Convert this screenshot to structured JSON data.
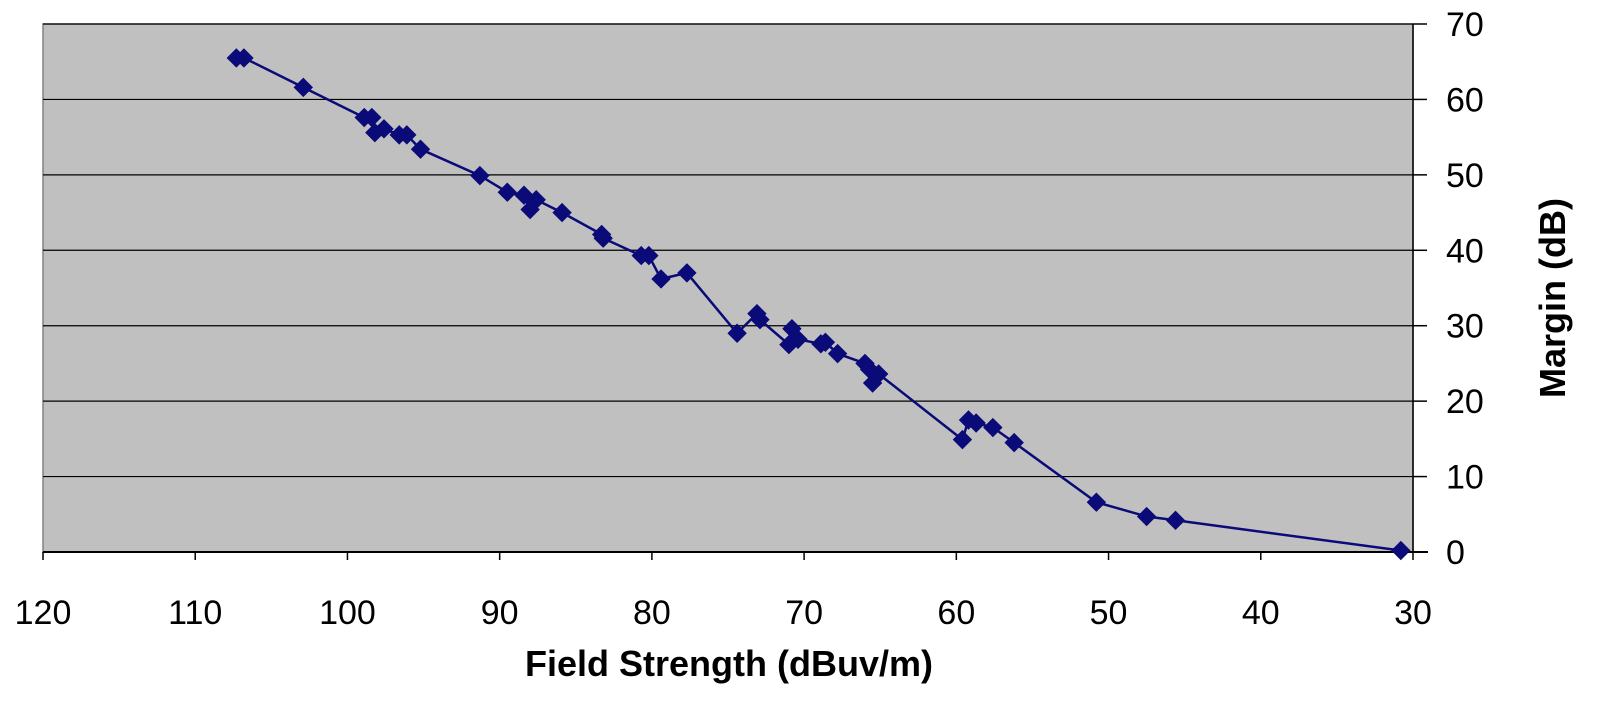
{
  "chart_data": {
    "type": "line",
    "title": "",
    "xlabel": "Field Strength (dBuv/m)",
    "ylabel": "Margin (dB)",
    "xlim": [
      120,
      30
    ],
    "ylim": [
      0,
      70
    ],
    "x_reversed": true,
    "y_axis_side": "right",
    "grid": "horizontal",
    "legend": "none",
    "x_ticks": [
      120,
      110,
      100,
      90,
      80,
      70,
      60,
      50,
      40,
      30
    ],
    "y_ticks": [
      0,
      10,
      20,
      30,
      40,
      50,
      60,
      70
    ],
    "colors": {
      "series": "#0a0a78",
      "plot_bg": "#c0c0c0",
      "grid": "#000000"
    },
    "series": [
      {
        "marker": "diamond",
        "points": [
          [
            107.3,
            65.5
          ],
          [
            106.8,
            65.5
          ],
          [
            102.9,
            61.6
          ],
          [
            98.9,
            57.6
          ],
          [
            98.4,
            57.6
          ],
          [
            98.2,
            55.6
          ],
          [
            97.6,
            56.1
          ],
          [
            96.6,
            55.3
          ],
          [
            96.1,
            55.3
          ],
          [
            95.2,
            53.4
          ],
          [
            91.3,
            49.9
          ],
          [
            89.5,
            47.7
          ],
          [
            88.4,
            47.3
          ],
          [
            88.0,
            45.4
          ],
          [
            87.6,
            46.7
          ],
          [
            85.9,
            45.0
          ],
          [
            83.3,
            42.1
          ],
          [
            83.2,
            41.6
          ],
          [
            80.7,
            39.3
          ],
          [
            80.2,
            39.3
          ],
          [
            79.4,
            36.2
          ],
          [
            77.7,
            37.0
          ],
          [
            74.4,
            29.0
          ],
          [
            73.1,
            31.6
          ],
          [
            72.9,
            30.8
          ],
          [
            71.0,
            27.5
          ],
          [
            70.8,
            29.6
          ],
          [
            70.4,
            28.2
          ],
          [
            68.9,
            27.6
          ],
          [
            68.6,
            27.8
          ],
          [
            67.8,
            26.3
          ],
          [
            66.0,
            25.0
          ],
          [
            65.7,
            24.2
          ],
          [
            65.5,
            22.4
          ],
          [
            65.1,
            23.6
          ],
          [
            59.6,
            14.9
          ],
          [
            59.2,
            17.5
          ],
          [
            58.7,
            17.1
          ],
          [
            57.6,
            16.5
          ],
          [
            56.2,
            14.5
          ],
          [
            50.8,
            6.6
          ],
          [
            47.5,
            4.7
          ],
          [
            45.6,
            4.2
          ],
          [
            30.8,
            0.2
          ]
        ]
      }
    ]
  }
}
